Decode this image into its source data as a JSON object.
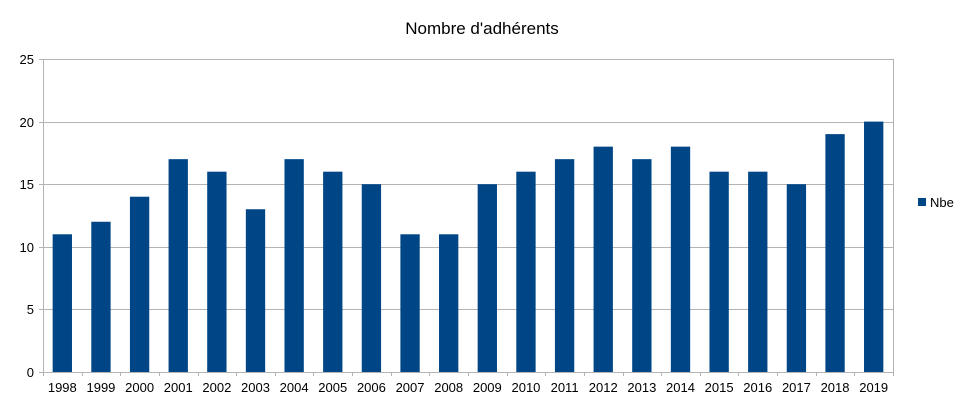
{
  "chart_data": {
    "type": "bar",
    "title": "Nombre d'adhérents",
    "xlabel": "",
    "ylabel": "",
    "categories": [
      "1998",
      "1999",
      "2000",
      "2001",
      "2002",
      "2003",
      "2004",
      "2005",
      "2006",
      "2007",
      "2008",
      "2009",
      "2010",
      "2011",
      "2012",
      "2013",
      "2014",
      "2015",
      "2016",
      "2017",
      "2018",
      "2019"
    ],
    "series": [
      {
        "name": "Nbe",
        "values": [
          11,
          12,
          14,
          17,
          16,
          13,
          17,
          16,
          15,
          11,
          11,
          15,
          16,
          17,
          18,
          17,
          18,
          16,
          16,
          15,
          19,
          20
        ],
        "color": "#004586"
      }
    ],
    "ylim": [
      0,
      25
    ],
    "yticks": [
      0,
      5,
      10,
      15,
      20,
      25
    ],
    "grid": true,
    "legend": "right"
  }
}
